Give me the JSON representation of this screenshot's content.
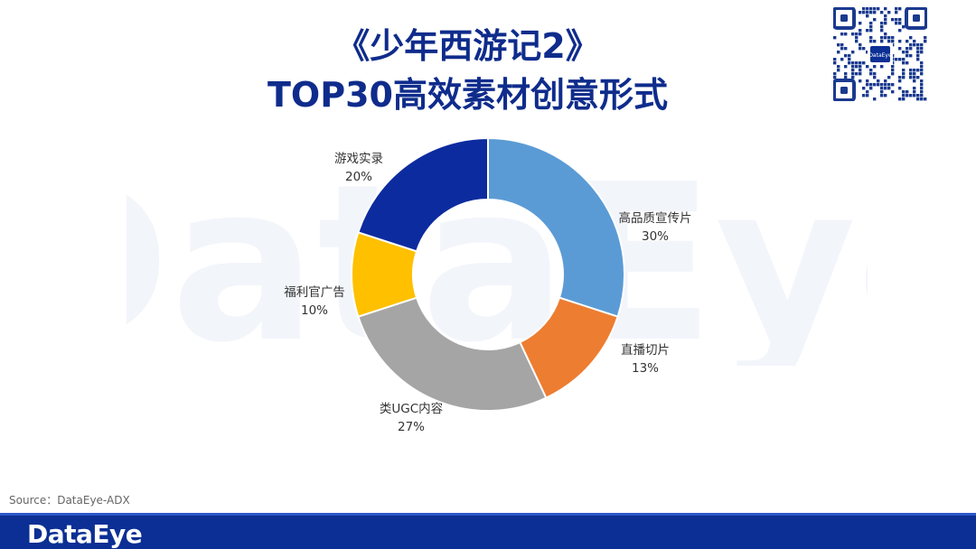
{
  "header": {
    "title_line1": "《少年西游记2》",
    "title_line2": "TOP30高效素材创意形式"
  },
  "qr": {
    "center_text": "DataEye"
  },
  "watermark": {
    "text": "DataEye"
  },
  "chart_data": {
    "type": "pie",
    "variant": "donut",
    "categories": [
      "高品质宣传片",
      "直播切片",
      "类UGC内容",
      "福利官广告",
      "游戏实录"
    ],
    "values": [
      30,
      13,
      27,
      10,
      20
    ],
    "labels": [
      "30%",
      "13%",
      "27%",
      "10%",
      "20%"
    ],
    "colors": [
      "#5b9bd5",
      "#ed7d31",
      "#a5a5a5",
      "#ffc000",
      "#0c2b9e"
    ],
    "start": "12 o'clock, clockwise"
  },
  "footer": {
    "source": "Source：DataEye-ADX",
    "logo": "DataEye"
  }
}
